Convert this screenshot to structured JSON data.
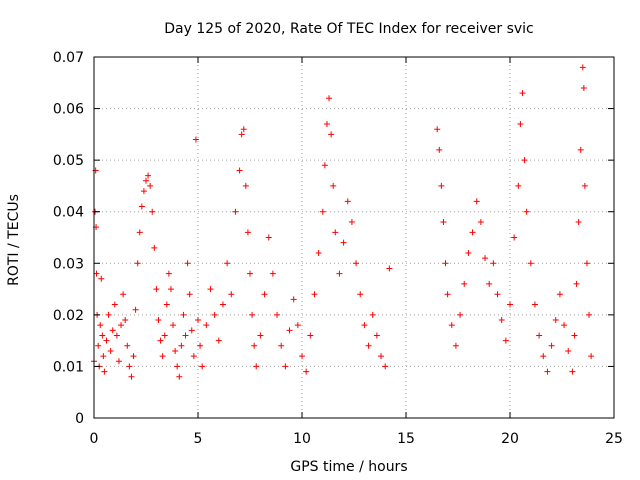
{
  "chart_data": {
    "type": "scatter",
    "title": "Day 125 of 2020, Rate Of TEC Index for receiver svic",
    "xlabel": "GPS time / hours",
    "ylabel": "ROTI / TECUs",
    "xlim": [
      0,
      25
    ],
    "ylim": [
      0,
      0.07
    ],
    "xticks": [
      0,
      5,
      10,
      15,
      20,
      25
    ],
    "yticks": [
      0,
      0.01,
      0.02,
      0.03,
      0.04,
      0.05,
      0.06,
      0.07
    ],
    "xtick_labels": [
      "0",
      "5",
      "10",
      "15",
      "20",
      "25"
    ],
    "ytick_labels": [
      "0",
      "0.01",
      "0.02",
      "0.03",
      "0.04",
      "0.05",
      "0.06",
      "0.07"
    ],
    "grid": true,
    "marker": "+",
    "color": "#ff0000",
    "series": [
      {
        "points": [
          [
            0.0,
            0.011
          ],
          [
            0.05,
            0.04
          ],
          [
            0.08,
            0.048
          ],
          [
            0.1,
            0.037
          ],
          [
            0.12,
            0.028
          ],
          [
            0.15,
            0.02
          ],
          [
            0.2,
            0.014
          ],
          [
            0.25,
            0.01
          ],
          [
            0.3,
            0.018
          ],
          [
            0.35,
            0.027
          ],
          [
            0.4,
            0.016
          ],
          [
            0.45,
            0.012
          ],
          [
            0.5,
            0.009
          ],
          [
            0.6,
            0.015
          ],
          [
            0.7,
            0.02
          ],
          [
            0.8,
            0.013
          ],
          [
            0.9,
            0.017
          ],
          [
            1.0,
            0.022
          ],
          [
            1.1,
            0.016
          ],
          [
            1.2,
            0.011
          ],
          [
            1.3,
            0.018
          ],
          [
            1.4,
            0.024
          ],
          [
            1.5,
            0.019
          ],
          [
            1.6,
            0.014
          ],
          [
            1.7,
            0.01
          ],
          [
            1.8,
            0.008
          ],
          [
            1.9,
            0.012
          ],
          [
            2.0,
            0.021
          ],
          [
            2.1,
            0.03
          ],
          [
            2.2,
            0.036
          ],
          [
            2.3,
            0.041
          ],
          [
            2.4,
            0.044
          ],
          [
            2.5,
            0.046
          ],
          [
            2.6,
            0.047
          ],
          [
            2.7,
            0.045
          ],
          [
            2.8,
            0.04
          ],
          [
            2.9,
            0.033
          ],
          [
            3.0,
            0.025
          ],
          [
            3.1,
            0.019
          ],
          [
            3.2,
            0.015
          ],
          [
            3.3,
            0.012
          ],
          [
            3.4,
            0.016
          ],
          [
            3.5,
            0.022
          ],
          [
            3.6,
            0.028
          ],
          [
            3.7,
            0.025
          ],
          [
            3.8,
            0.018
          ],
          [
            3.9,
            0.013
          ],
          [
            4.0,
            0.01
          ],
          [
            4.1,
            0.008
          ],
          [
            4.2,
            0.014
          ],
          [
            4.3,
            0.02
          ],
          [
            4.4,
            0.016
          ],
          [
            4.5,
            0.03
          ],
          [
            4.6,
            0.024
          ],
          [
            4.7,
            0.017
          ],
          [
            4.8,
            0.012
          ],
          [
            4.9,
            0.054
          ],
          [
            5.0,
            0.019
          ],
          [
            5.1,
            0.014
          ],
          [
            5.2,
            0.01
          ],
          [
            5.4,
            0.018
          ],
          [
            5.6,
            0.025
          ],
          [
            5.8,
            0.02
          ],
          [
            6.0,
            0.015
          ],
          [
            6.2,
            0.022
          ],
          [
            6.4,
            0.03
          ],
          [
            6.6,
            0.024
          ],
          [
            6.8,
            0.04
          ],
          [
            7.0,
            0.048
          ],
          [
            7.1,
            0.055
          ],
          [
            7.2,
            0.056
          ],
          [
            7.3,
            0.045
          ],
          [
            7.4,
            0.036
          ],
          [
            7.5,
            0.028
          ],
          [
            7.6,
            0.02
          ],
          [
            7.7,
            0.014
          ],
          [
            7.8,
            0.01
          ],
          [
            8.0,
            0.016
          ],
          [
            8.2,
            0.024
          ],
          [
            8.4,
            0.035
          ],
          [
            8.6,
            0.028
          ],
          [
            8.8,
            0.02
          ],
          [
            9.0,
            0.014
          ],
          [
            9.2,
            0.01
          ],
          [
            9.4,
            0.017
          ],
          [
            9.6,
            0.023
          ],
          [
            9.8,
            0.018
          ],
          [
            10.0,
            0.012
          ],
          [
            10.2,
            0.009
          ],
          [
            10.4,
            0.016
          ],
          [
            10.6,
            0.024
          ],
          [
            10.8,
            0.032
          ],
          [
            11.0,
            0.04
          ],
          [
            11.1,
            0.049
          ],
          [
            11.2,
            0.057
          ],
          [
            11.3,
            0.062
          ],
          [
            11.4,
            0.055
          ],
          [
            11.5,
            0.045
          ],
          [
            11.6,
            0.036
          ],
          [
            11.8,
            0.028
          ],
          [
            12.0,
            0.034
          ],
          [
            12.2,
            0.042
          ],
          [
            12.4,
            0.038
          ],
          [
            12.6,
            0.03
          ],
          [
            12.8,
            0.024
          ],
          [
            13.0,
            0.018
          ],
          [
            13.2,
            0.014
          ],
          [
            13.4,
            0.02
          ],
          [
            13.6,
            0.016
          ],
          [
            13.8,
            0.012
          ],
          [
            14.0,
            0.01
          ],
          [
            14.2,
            0.029
          ],
          [
            16.5,
            0.056
          ],
          [
            16.6,
            0.052
          ],
          [
            16.7,
            0.045
          ],
          [
            16.8,
            0.038
          ],
          [
            16.9,
            0.03
          ],
          [
            17.0,
            0.024
          ],
          [
            17.2,
            0.018
          ],
          [
            17.4,
            0.014
          ],
          [
            17.6,
            0.02
          ],
          [
            17.8,
            0.026
          ],
          [
            18.0,
            0.032
          ],
          [
            18.2,
            0.036
          ],
          [
            18.4,
            0.042
          ],
          [
            18.6,
            0.038
          ],
          [
            18.8,
            0.031
          ],
          [
            19.0,
            0.026
          ],
          [
            19.2,
            0.03
          ],
          [
            19.4,
            0.024
          ],
          [
            19.6,
            0.019
          ],
          [
            19.8,
            0.015
          ],
          [
            20.0,
            0.022
          ],
          [
            20.2,
            0.035
          ],
          [
            20.4,
            0.045
          ],
          [
            20.5,
            0.057
          ],
          [
            20.6,
            0.063
          ],
          [
            20.7,
            0.05
          ],
          [
            20.8,
            0.04
          ],
          [
            21.0,
            0.03
          ],
          [
            21.2,
            0.022
          ],
          [
            21.4,
            0.016
          ],
          [
            21.6,
            0.012
          ],
          [
            21.8,
            0.009
          ],
          [
            22.0,
            0.014
          ],
          [
            22.2,
            0.019
          ],
          [
            22.4,
            0.024
          ],
          [
            22.6,
            0.018
          ],
          [
            22.8,
            0.013
          ],
          [
            23.0,
            0.009
          ],
          [
            23.1,
            0.016
          ],
          [
            23.2,
            0.026
          ],
          [
            23.3,
            0.038
          ],
          [
            23.4,
            0.052
          ],
          [
            23.5,
            0.068
          ],
          [
            23.55,
            0.064
          ],
          [
            23.6,
            0.045
          ],
          [
            23.7,
            0.03
          ],
          [
            23.8,
            0.02
          ],
          [
            23.9,
            0.012
          ]
        ]
      }
    ]
  }
}
